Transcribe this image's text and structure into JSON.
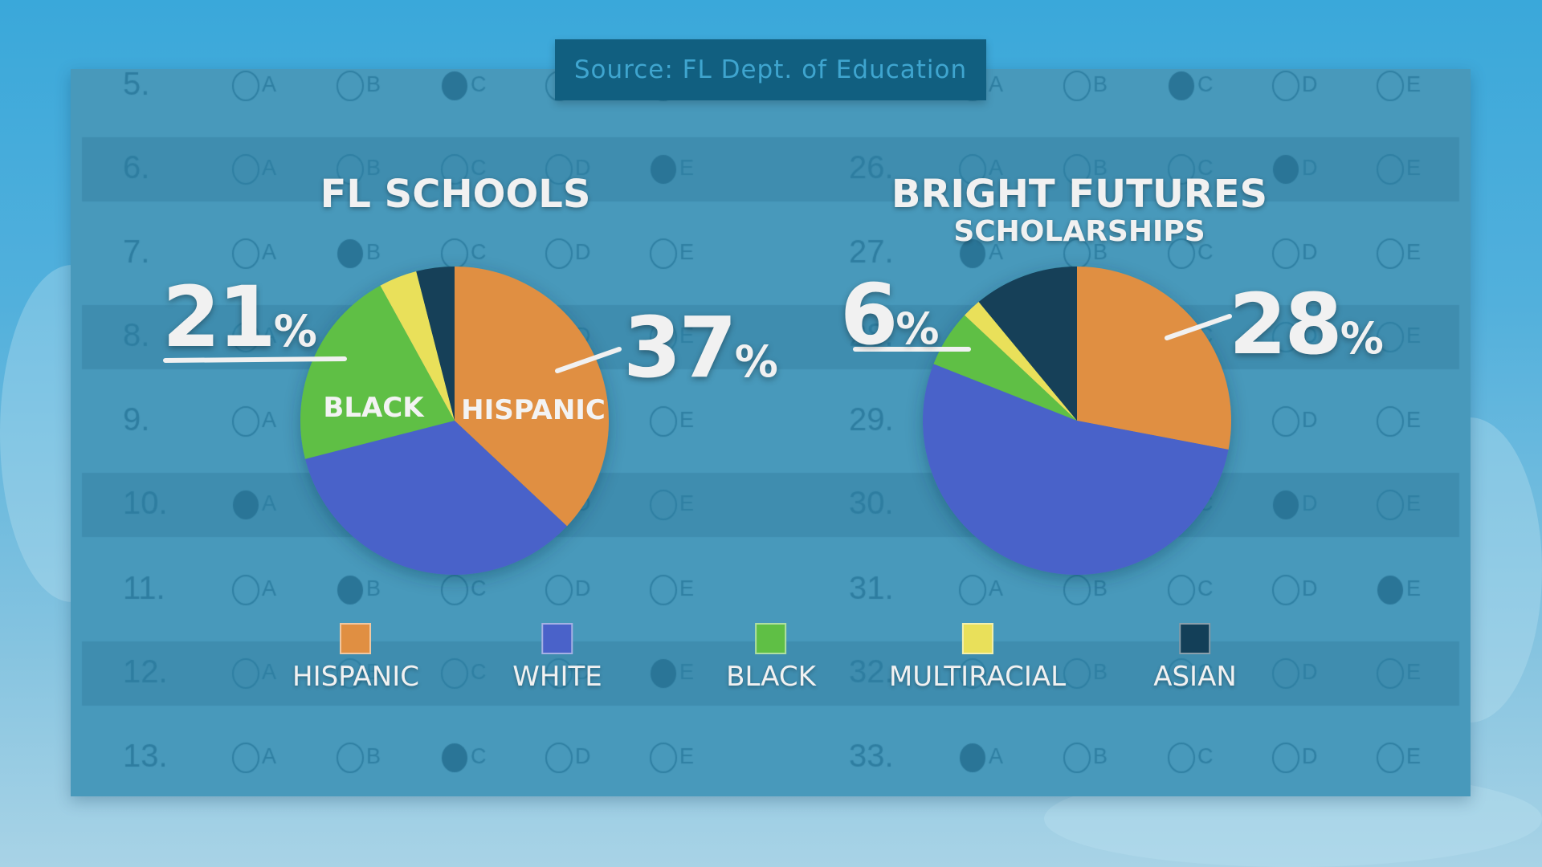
{
  "source": "Source: FL Dept. of Education",
  "background_sheet": {
    "letters": [
      "A",
      "B",
      "C",
      "D",
      "E"
    ],
    "left_rows": [
      {
        "num": "5.",
        "filled": "C"
      },
      {
        "num": "6.",
        "filled": "E"
      },
      {
        "num": "7.",
        "filled": "B"
      },
      {
        "num": "8.",
        "filled": null
      },
      {
        "num": "9.",
        "filled": null
      },
      {
        "num": "10.",
        "filled": "A"
      },
      {
        "num": "11.",
        "filled": "B"
      },
      {
        "num": "12.",
        "filled": "E"
      },
      {
        "num": "13.",
        "filled": "C"
      }
    ],
    "right_rows": [
      {
        "num": "",
        "filled": "C"
      },
      {
        "num": "26.",
        "filled": "D"
      },
      {
        "num": "27.",
        "filled": "A"
      },
      {
        "num": "28.",
        "filled": null
      },
      {
        "num": "29.",
        "filled": null
      },
      {
        "num": "30.",
        "filled": "D"
      },
      {
        "num": "31.",
        "filled": "E"
      },
      {
        "num": "32.",
        "filled": null
      },
      {
        "num": "33.",
        "filled": "A"
      }
    ]
  },
  "chart_data": [
    {
      "type": "pie",
      "title": "FL SCHOOLS",
      "categories": [
        "HISPANIC",
        "WHITE",
        "BLACK",
        "MULTIRACIAL",
        "ASIAN"
      ],
      "values": [
        37,
        34,
        21,
        4,
        4
      ],
      "callouts": [
        {
          "category": "BLACK",
          "number": "21",
          "unit": "%"
        },
        {
          "category": "HISPANIC",
          "number": "37",
          "unit": "%"
        }
      ],
      "slice_labels": {
        "BLACK": "BLACK",
        "HISPANIC": "HISPANIC"
      }
    },
    {
      "type": "pie",
      "title": "BRIGHT FUTURES",
      "subtitle": "SCHOLARSHIPS",
      "categories": [
        "HISPANIC",
        "WHITE",
        "BLACK",
        "MULTIRACIAL",
        "ASIAN"
      ],
      "values": [
        28,
        53,
        6,
        2,
        11
      ],
      "callouts": [
        {
          "category": "BLACK",
          "number": "6",
          "unit": "%"
        },
        {
          "category": "HISPANIC",
          "number": "28",
          "unit": "%"
        }
      ]
    }
  ],
  "legend": [
    {
      "label": "HISPANIC",
      "color": "#e08f42"
    },
    {
      "label": "WHITE",
      "color": "#4a62c9"
    },
    {
      "label": "BLACK",
      "color": "#5fbf45"
    },
    {
      "label": "MULTIRACIAL",
      "color": "#e9e05a"
    },
    {
      "label": "ASIAN",
      "color": "#133f58"
    }
  ]
}
